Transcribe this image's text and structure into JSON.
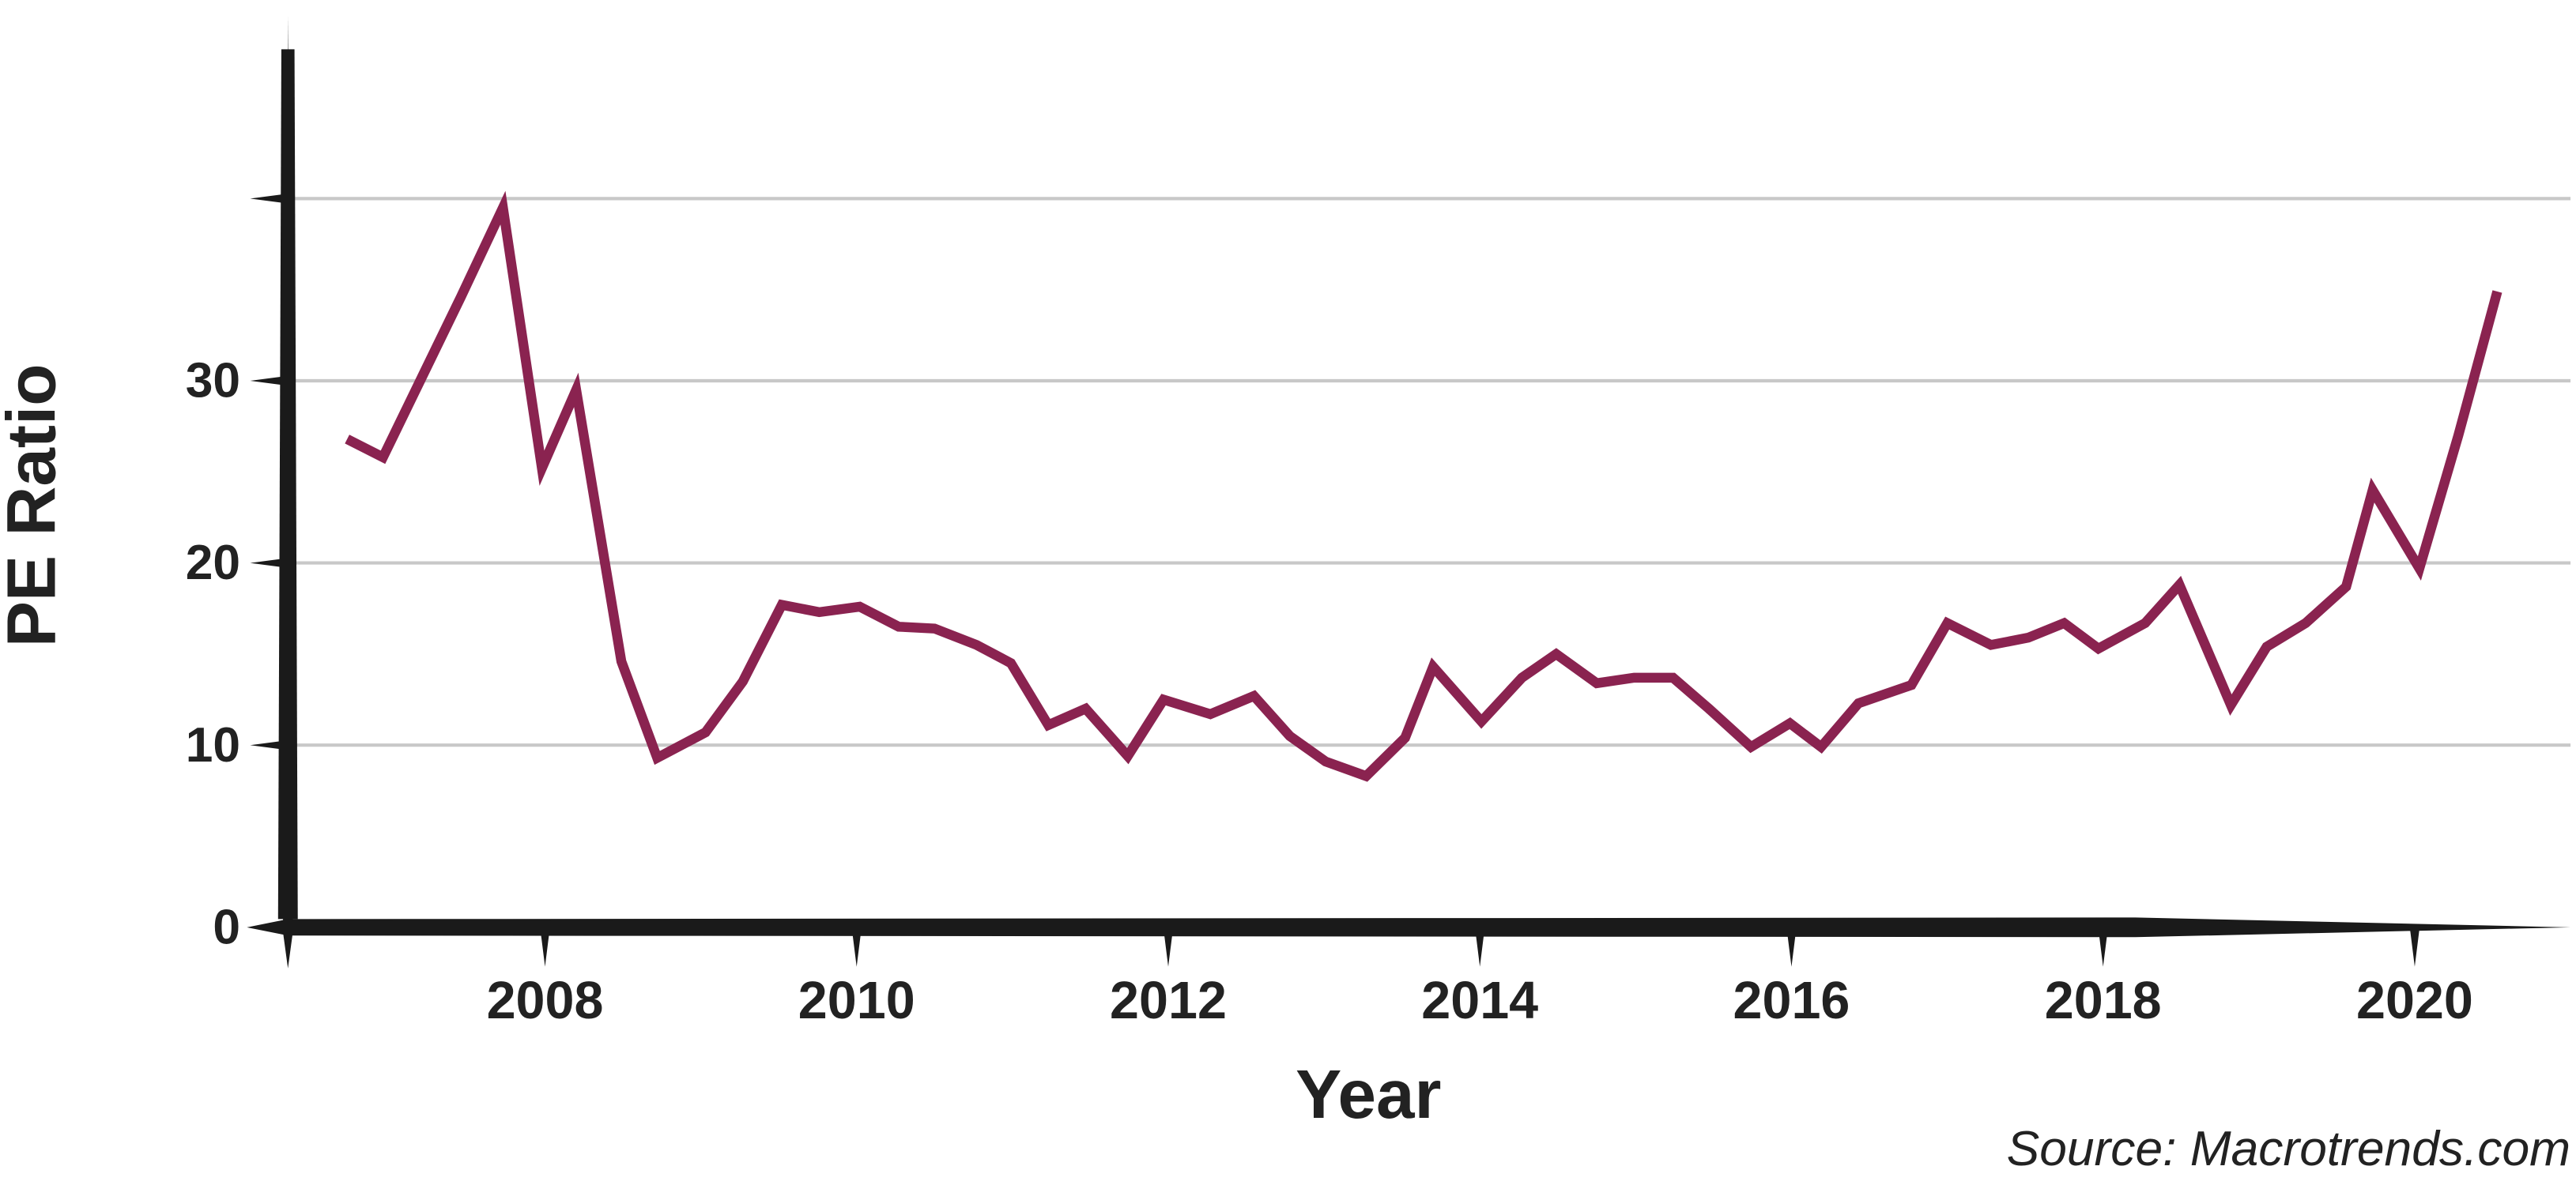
{
  "chart_data": {
    "type": "line",
    "xlabel": "Year",
    "ylabel": "PE Ratio",
    "source": "Source: Macrotrends.com",
    "color": "#8a2350",
    "grid": true,
    "xlim": [
      2006.35,
      2021.0
    ],
    "ylim": [
      0,
      50
    ],
    "xticks": [
      2008,
      2010,
      2012,
      2014,
      2016,
      2018,
      2020
    ],
    "yticks": [
      0,
      10,
      20,
      30,
      {
        "value": 40,
        "label": null
      }
    ],
    "x": [
      2006.73,
      2006.96,
      2007.21,
      2007.46,
      2007.73,
      2007.98,
      2008.2,
      2008.49,
      2008.72,
      2009.03,
      2009.27,
      2009.52,
      2009.76,
      2010.02,
      2010.27,
      2010.5,
      2010.77,
      2010.99,
      2011.23,
      2011.47,
      2011.74,
      2011.97,
      2012.27,
      2012.55,
      2012.78,
      2013.01,
      2013.27,
      2013.52,
      2013.7,
      2014.01,
      2014.27,
      2014.49,
      2014.75,
      2014.99,
      2015.24,
      2015.47,
      2015.74,
      2015.99,
      2016.19,
      2016.43,
      2016.77,
      2017.0,
      2017.28,
      2017.52,
      2017.75,
      2017.97,
      2018.27,
      2018.49,
      2018.82,
      2019.05,
      2019.3,
      2019.56,
      2019.73,
      2020.03,
      2020.28,
      2020.53
    ],
    "values": [
      26.8,
      25.8,
      30.2,
      34.6,
      39.5,
      25.2,
      29.5,
      14.6,
      9.3,
      10.7,
      13.5,
      17.7,
      17.3,
      17.6,
      16.5,
      16.4,
      15.5,
      14.5,
      11.1,
      12.0,
      9.4,
      12.5,
      11.7,
      12.7,
      10.5,
      9.1,
      8.3,
      10.4,
      14.3,
      11.3,
      13.7,
      15.0,
      13.4,
      13.7,
      13.7,
      12.0,
      9.9,
      11.2,
      9.9,
      12.3,
      13.3,
      16.7,
      15.5,
      15.9,
      16.7,
      15.3,
      16.7,
      18.8,
      12.2,
      15.4,
      16.7,
      18.7,
      24.0,
      19.7,
      27.0,
      34.9
    ]
  }
}
